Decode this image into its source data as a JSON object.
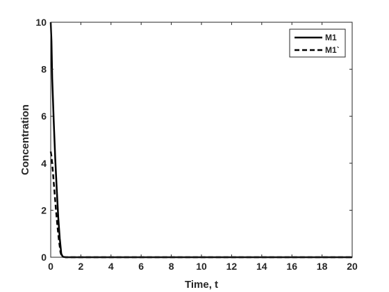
{
  "chart_data": {
    "type": "line",
    "xlabel": "Time, t",
    "ylabel": "Concentration",
    "xlim": [
      0,
      20
    ],
    "ylim": [
      0,
      10
    ],
    "xticks": [
      0,
      2,
      4,
      6,
      8,
      10,
      12,
      14,
      16,
      18,
      20
    ],
    "yticks": [
      0,
      2,
      4,
      6,
      8,
      10
    ],
    "grid": false,
    "legend": {
      "placement": "top-right"
    },
    "series": [
      {
        "name": "M1",
        "style": "solid",
        "color": "#000000",
        "x": [
          0,
          0.05,
          0.1,
          0.2,
          0.3,
          0.4,
          0.5,
          0.6,
          0.7,
          0.8,
          1,
          2,
          4,
          6,
          8,
          10,
          12,
          14,
          16,
          18,
          20
        ],
        "y": [
          10,
          9.2,
          7.6,
          5.8,
          4.2,
          2.9,
          1.7,
          0.8,
          0.15,
          0.02,
          0,
          0,
          0,
          0,
          0,
          0,
          0,
          0,
          0,
          0,
          0
        ]
      },
      {
        "name": "M1`",
        "style": "dashed",
        "color": "#000000",
        "x": [
          0,
          0.05,
          0.15,
          0.25,
          0.35,
          0.45,
          0.55,
          0.65,
          0.75,
          1,
          2,
          4,
          6,
          8,
          10,
          12,
          14,
          16,
          18,
          20
        ],
        "y": [
          4.5,
          4.3,
          3.6,
          2.8,
          2.0,
          1.3,
          0.7,
          0.2,
          0.02,
          0,
          0,
          0,
          0,
          0,
          0,
          0,
          0,
          0,
          0,
          0
        ]
      }
    ]
  }
}
